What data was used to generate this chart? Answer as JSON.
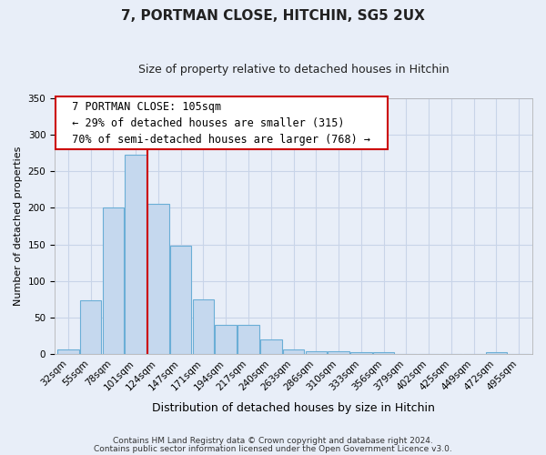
{
  "title": "7, PORTMAN CLOSE, HITCHIN, SG5 2UX",
  "subtitle": "Size of property relative to detached houses in Hitchin",
  "xlabel": "Distribution of detached houses by size in Hitchin",
  "ylabel": "Number of detached properties",
  "bar_labels": [
    "32sqm",
    "55sqm",
    "78sqm",
    "101sqm",
    "124sqm",
    "147sqm",
    "171sqm",
    "194sqm",
    "217sqm",
    "240sqm",
    "263sqm",
    "286sqm",
    "310sqm",
    "333sqm",
    "356sqm",
    "379sqm",
    "402sqm",
    "425sqm",
    "449sqm",
    "472sqm",
    "495sqm"
  ],
  "bar_values": [
    6,
    73,
    200,
    273,
    205,
    148,
    75,
    40,
    40,
    20,
    6,
    4,
    4,
    3,
    3,
    0,
    0,
    0,
    0,
    3,
    0
  ],
  "bar_color": "#c5d8ee",
  "bar_edgecolor": "#6aaed6",
  "vline_x": 3.5,
  "vline_color": "#cc0000",
  "ylim": [
    0,
    350
  ],
  "yticks": [
    0,
    50,
    100,
    150,
    200,
    250,
    300,
    350
  ],
  "annotation_title": "7 PORTMAN CLOSE: 105sqm",
  "annotation_line1": "← 29% of detached houses are smaller (315)",
  "annotation_line2": "70% of semi-detached houses are larger (768) →",
  "footer1": "Contains HM Land Registry data © Crown copyright and database right 2024.",
  "footer2": "Contains public sector information licensed under the Open Government Licence v3.0.",
  "bg_color": "#e8eef8",
  "plot_bg_color": "#e8eef8",
  "grid_color": "#c8d4e8",
  "title_fontsize": 11,
  "subtitle_fontsize": 9,
  "xlabel_fontsize": 9,
  "ylabel_fontsize": 8,
  "tick_fontsize": 7.5,
  "ann_fontsize": 8.5,
  "footer_fontsize": 6.5
}
